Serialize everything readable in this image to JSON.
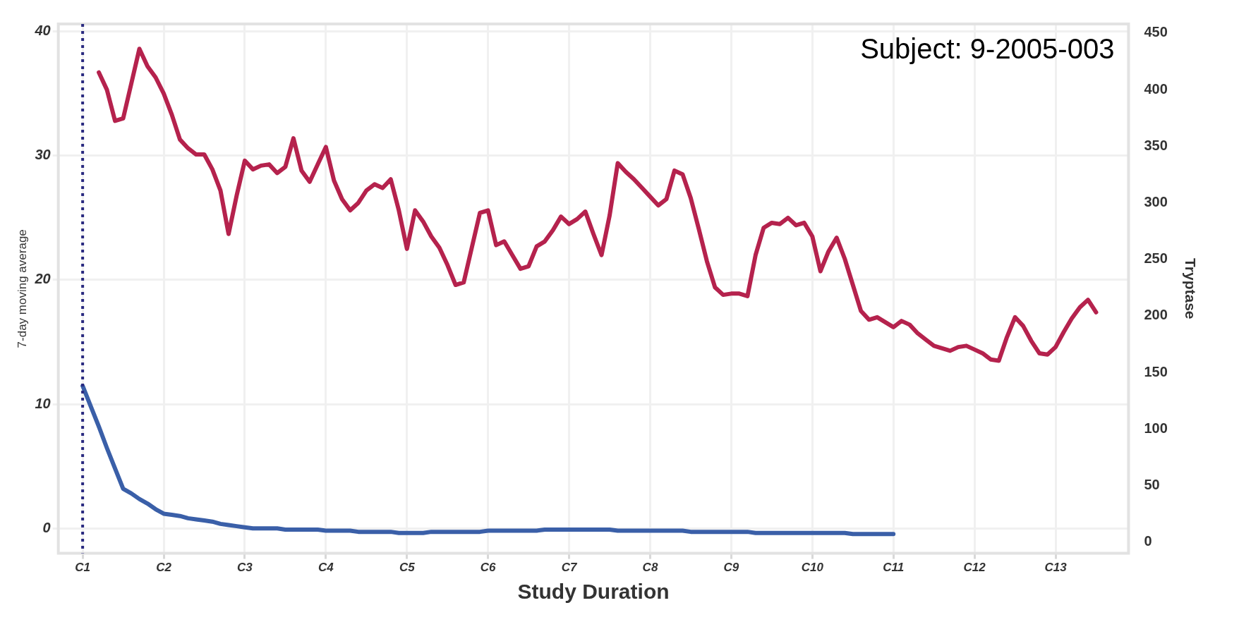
{
  "chart_data": {
    "type": "line",
    "xlabel": "Study Duration",
    "ylabel": "7-day moving average",
    "y2label": "Tryptase",
    "annotations": [
      "Subject: 9-2005-003"
    ],
    "categories": [
      null,
      null,
      null,
      "C1",
      null,
      null,
      null,
      null,
      null,
      null,
      null,
      null,
      null,
      "C2",
      null,
      null,
      null,
      null,
      null,
      null,
      null,
      null,
      null,
      "C3",
      null,
      null,
      null,
      null,
      null,
      null,
      null,
      null,
      null,
      "C4",
      null,
      null,
      null,
      null,
      null,
      null,
      null,
      null,
      null,
      "C5",
      null,
      null,
      null,
      null,
      null,
      null,
      null,
      null,
      null,
      "C6",
      null,
      null,
      null,
      null,
      null,
      null,
      null,
      null,
      null,
      "C7",
      null,
      null,
      null,
      null,
      null,
      null,
      null,
      null,
      null,
      "C8",
      null,
      null,
      null,
      null,
      null,
      null,
      null,
      null,
      null,
      "C9",
      null,
      null,
      null,
      null,
      null,
      null,
      null,
      null,
      null,
      "C10",
      null,
      null,
      null,
      null,
      null,
      null,
      null,
      null,
      null,
      "C11",
      null,
      null,
      null,
      null,
      null,
      null,
      null,
      null,
      null,
      "C12",
      null,
      null,
      null,
      null,
      null,
      null,
      null,
      null,
      null,
      "C13",
      null,
      null,
      null,
      null,
      null,
      null,
      null,
      null,
      null
    ],
    "ylim": [
      -2,
      40.6
    ],
    "yticks": [
      0,
      10,
      20,
      30,
      40
    ],
    "y2lim": [
      -10,
      458
    ],
    "y2ticks": [
      0,
      50,
      100,
      150,
      200,
      250,
      300,
      350,
      400,
      450
    ],
    "grid": true,
    "marker": "none",
    "line_style": "solid",
    "ref_lines": [
      {
        "axis": "x",
        "value": "C1",
        "color": "#2a2a80",
        "line_style": "dotted"
      }
    ],
    "series": [
      {
        "color": "#b5224d",
        "values": [
          null,
          null,
          null,
          null,
          null,
          36.7,
          35.3,
          32.8,
          33.0,
          35.8,
          38.6,
          37.2,
          36.3,
          35.0,
          33.3,
          31.3,
          30.6,
          30.1,
          30.1,
          28.9,
          27.2,
          23.7,
          26.8,
          29.6,
          28.9,
          29.2,
          29.3,
          28.6,
          29.1,
          31.4,
          28.8,
          27.9,
          29.3,
          30.7,
          28.0,
          26.5,
          25.6,
          26.2,
          27.2,
          27.7,
          27.4,
          28.1,
          25.6,
          22.5,
          25.6,
          24.7,
          23.5,
          22.6,
          21.2,
          19.6,
          19.8,
          22.6,
          25.4,
          25.6,
          22.8,
          23.1,
          22.0,
          20.9,
          21.1,
          22.7,
          23.1,
          24.0,
          25.1,
          24.5,
          24.9,
          25.5,
          23.7,
          22.0,
          25.2,
          29.4,
          28.7,
          28.1,
          27.4,
          26.7,
          26.0,
          26.5,
          28.8,
          28.5,
          26.6,
          24.1,
          21.5,
          19.4,
          18.8,
          18.9,
          18.9,
          18.7,
          22.0,
          24.2,
          24.6,
          24.5,
          25.0,
          24.4,
          24.6,
          23.5,
          20.7,
          22.3,
          23.4,
          21.7,
          19.6,
          17.5,
          16.8,
          17.0,
          16.6,
          16.2,
          16.7,
          16.4,
          15.7,
          15.2,
          14.7,
          14.5,
          14.3,
          14.6,
          14.7,
          14.4,
          14.1,
          13.6,
          13.5,
          15.4,
          17.0,
          16.3,
          15.1,
          14.1,
          14.0,
          14.6,
          15.8,
          16.9,
          17.8,
          18.4,
          17.4,
          null,
          null,
          null,
          null
        ]
      },
      {
        "color": "#3a5fa8",
        "axis": "y2",
        "values": [
          null,
          null,
          null,
          138,
          120,
          102,
          83,
          65,
          47,
          43,
          38,
          34,
          29,
          25,
          24,
          23,
          21,
          20,
          19,
          18,
          16,
          15,
          14,
          13,
          12,
          12,
          12,
          12,
          11,
          11,
          11,
          11,
          11,
          10,
          10,
          10,
          10,
          9,
          9,
          9,
          9,
          9,
          8,
          8,
          8,
          8,
          9,
          9,
          9,
          9,
          9,
          9,
          9,
          10,
          10,
          10,
          10,
          10,
          10,
          10,
          11,
          11,
          11,
          11,
          11,
          11,
          11,
          11,
          11,
          10,
          10,
          10,
          10,
          10,
          10,
          10,
          10,
          10,
          9,
          9,
          9,
          9,
          9,
          9,
          9,
          9,
          8,
          8,
          8,
          8,
          8,
          8,
          8,
          8,
          8,
          8,
          8,
          8,
          7,
          7,
          7,
          7,
          7,
          7,
          null,
          null,
          null,
          null,
          null,
          null,
          null,
          null,
          null,
          null,
          null,
          null,
          null,
          null,
          null,
          null,
          null,
          null,
          null,
          null,
          null,
          null,
          null,
          null,
          null,
          null,
          null,
          null,
          null
        ]
      }
    ]
  }
}
